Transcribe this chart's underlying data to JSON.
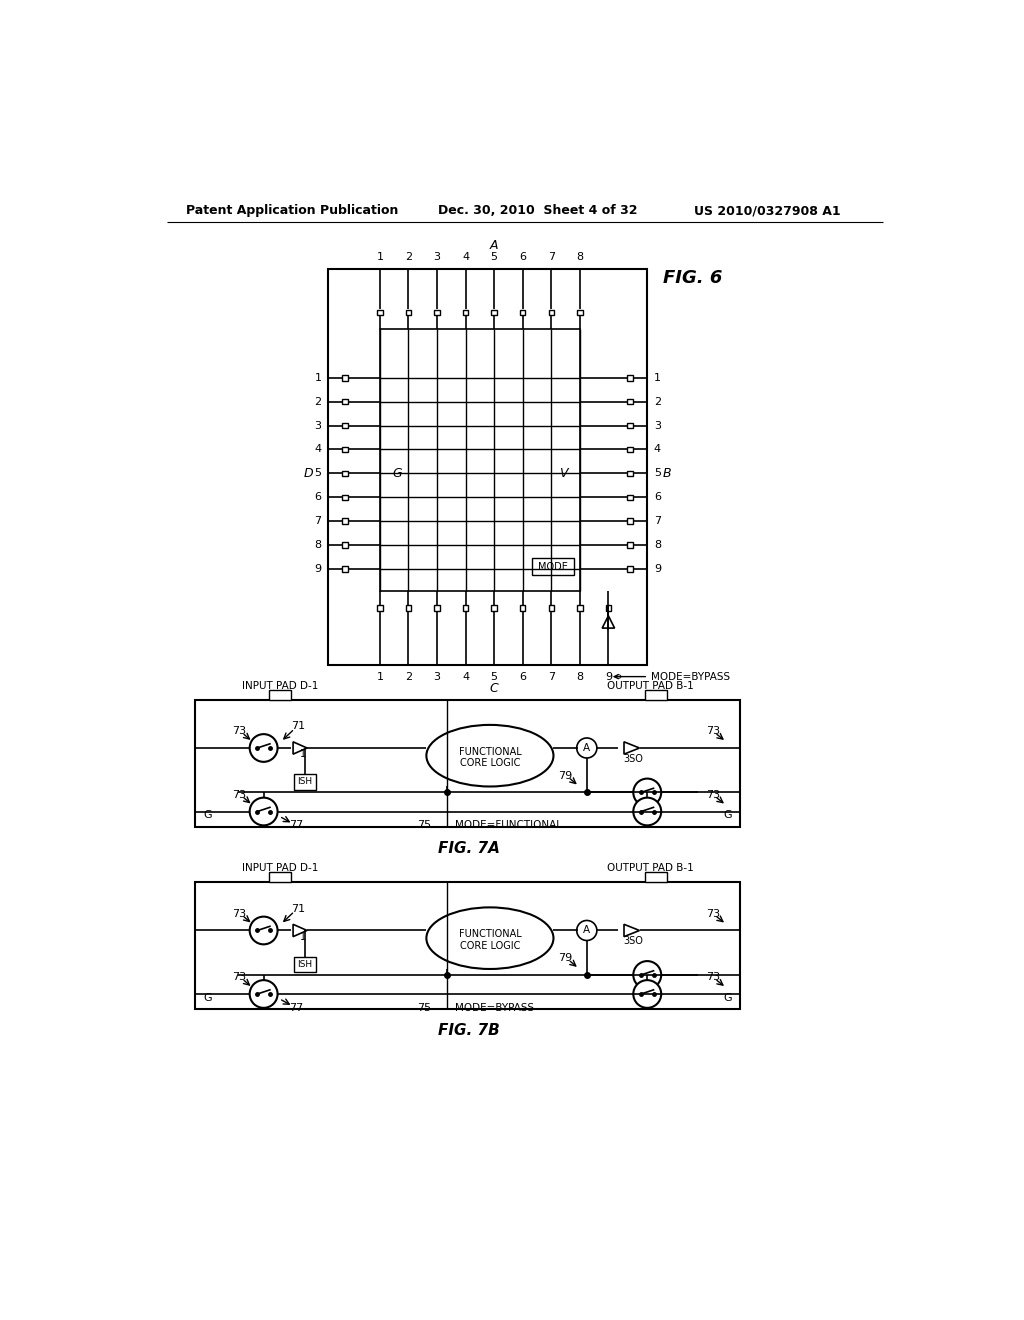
{
  "header_left": "Patent Application Publication",
  "header_mid": "Dec. 30, 2010  Sheet 4 of 32",
  "header_right": "US 2010/0327908 A1",
  "fig6_title": "FIG. 6",
  "fig7a_title": "FIG. 7A",
  "fig7b_title": "FIG. 7B",
  "background_color": "#ffffff"
}
